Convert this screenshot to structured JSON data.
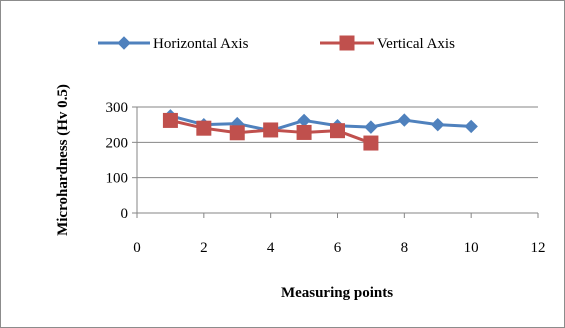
{
  "chart_data": {
    "type": "line",
    "title": "",
    "xlabel": "Measuring points",
    "ylabel": "Microhardness (Hv 0.5)",
    "xlim": [
      0,
      12
    ],
    "ylim": [
      0,
      300
    ],
    "x_ticks": [
      0,
      2,
      4,
      6,
      8,
      10,
      12
    ],
    "y_ticks": [
      0,
      100,
      200,
      300
    ],
    "grid": "horizontal",
    "legend_position": "top",
    "series": [
      {
        "name": "Horizontal Axis",
        "color": "#4f81bd",
        "marker": "diamond",
        "x": [
          1,
          2,
          3,
          4,
          5,
          6,
          7,
          8,
          9,
          10
        ],
        "values": [
          275,
          250,
          253,
          233,
          262,
          247,
          243,
          263,
          250,
          245
        ]
      },
      {
        "name": "Vertical Axis",
        "color": "#c0504d",
        "marker": "square",
        "x": [
          1,
          2,
          3,
          4,
          5,
          6,
          7
        ],
        "values": [
          262,
          240,
          227,
          235,
          228,
          233,
          198
        ]
      }
    ]
  }
}
